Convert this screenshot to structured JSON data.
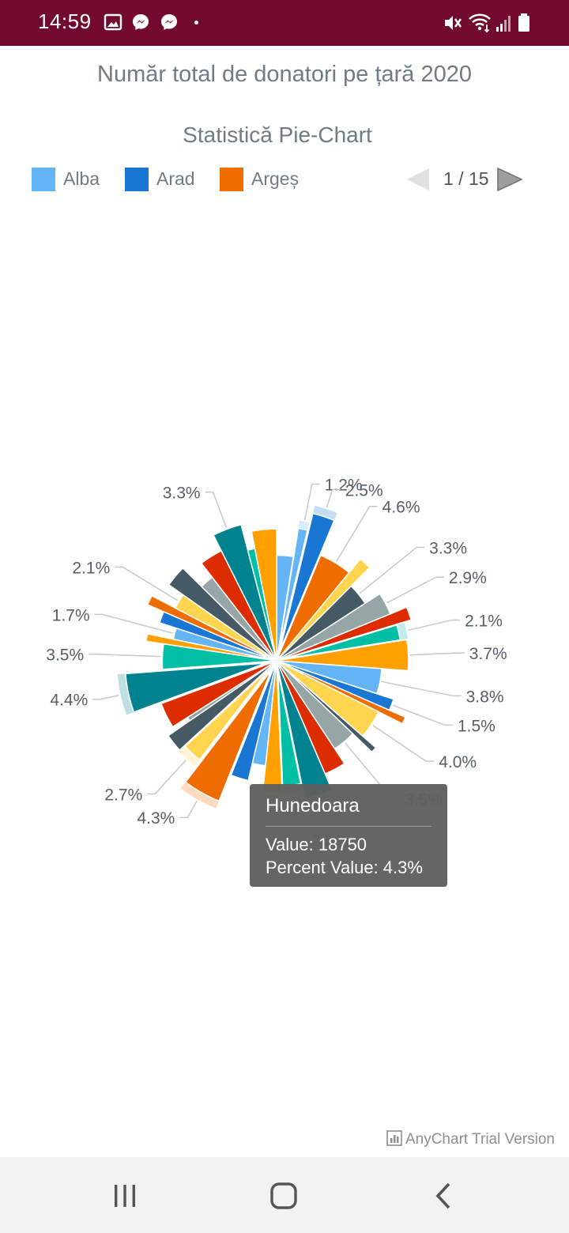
{
  "status_bar": {
    "time": "14:59"
  },
  "chart_data": {
    "type": "pie",
    "title": "Număr total de donatori pe țară 2020",
    "subtitle": "Statistică Pie-Chart",
    "legend": {
      "items": [
        {
          "label": "Alba",
          "color": "#64b5f6"
        },
        {
          "label": "Arad",
          "color": "#1976d2"
        },
        {
          "label": "Argeș",
          "color": "#ef6c00"
        }
      ],
      "page": "1 / 15"
    },
    "slices": [
      {
        "percent": 2.5,
        "color": "#64b5f6",
        "label": ""
      },
      {
        "percent": 1.2,
        "color": "#64b5f6",
        "label": "1.2%",
        "exploded": true
      },
      {
        "percent": 2.5,
        "color": "#1976d2",
        "label": "2.5%",
        "exploded": true
      },
      {
        "percent": 4.6,
        "color": "#ef6c00",
        "label": "4.6%"
      },
      {
        "percent": 1.5,
        "color": "#ffd54f",
        "label": ""
      },
      {
        "percent": 3.3,
        "color": "#455a64",
        "label": "3.3%"
      },
      {
        "percent": 2.9,
        "color": "#96a6a6",
        "label": "2.9%"
      },
      {
        "percent": 1.5,
        "color": "#dd2c00",
        "label": ""
      },
      {
        "percent": 2.1,
        "color": "#00bfa5",
        "label": "2.1%",
        "exploded": true
      },
      {
        "percent": 3.7,
        "color": "#ffa000",
        "label": "3.7%"
      },
      {
        "percent": 3.8,
        "color": "#64b5f6",
        "label": "3.8%"
      },
      {
        "percent": 1.5,
        "color": "#1976d2",
        "label": "1.5%"
      },
      {
        "percent": 0.8,
        "color": "#ef6c00",
        "label": ""
      },
      {
        "percent": 4.0,
        "color": "#ffd54f",
        "label": "4.0%"
      },
      {
        "percent": 0.7,
        "color": "#455a64",
        "label": ""
      },
      {
        "percent": 3.5,
        "color": "#96a6a6",
        "label": "3.5%"
      },
      {
        "percent": 2.8,
        "color": "#dd2c00",
        "label": ""
      },
      {
        "percent": 3.2,
        "color": "#00838f",
        "label": ""
      },
      {
        "percent": 2.5,
        "color": "#00bfa5",
        "label": "2.5%",
        "exploded": true
      },
      {
        "percent": 2.3,
        "color": "#ffa000",
        "label": ""
      },
      {
        "percent": 2.0,
        "color": "#64b5f6",
        "label": ""
      },
      {
        "percent": 2.3,
        "color": "#1976d2",
        "label": ""
      },
      {
        "percent": 4.3,
        "color": "#ef6c00",
        "label": "4.3%",
        "exploded": true
      },
      {
        "percent": 2.7,
        "color": "#ffd54f",
        "label": "2.7%",
        "exploded": true
      },
      {
        "percent": 2.2,
        "color": "#455a64",
        "label": ""
      },
      {
        "percent": 0.6,
        "color": "#96a6a6",
        "label": ""
      },
      {
        "percent": 3.3,
        "color": "#dd2c00",
        "label": ""
      },
      {
        "percent": 4.4,
        "color": "#00838f",
        "label": "4.4%",
        "exploded": true
      },
      {
        "percent": 3.5,
        "color": "#00bfa5",
        "label": "3.5%"
      },
      {
        "percent": 0.9,
        "color": "#ffa000",
        "label": ""
      },
      {
        "percent": 1.7,
        "color": "#64b5f6",
        "label": "1.7%"
      },
      {
        "percent": 1.5,
        "color": "#1976d2",
        "label": ""
      },
      {
        "percent": 1.1,
        "color": "#ef6c00",
        "label": ""
      },
      {
        "percent": 2.1,
        "color": "#ffd54f",
        "label": "2.1%"
      },
      {
        "percent": 2.6,
        "color": "#455a64",
        "label": ""
      },
      {
        "percent": 2.1,
        "color": "#96a6a6",
        "label": ""
      },
      {
        "percent": 3.0,
        "color": "#dd2c00",
        "label": ""
      },
      {
        "percent": 3.3,
        "color": "#00838f",
        "label": "3.3%"
      },
      {
        "percent": 1.0,
        "color": "#00bfa5",
        "label": ""
      },
      {
        "percent": 3.0,
        "color": "#ffa000",
        "label": ""
      }
    ],
    "tooltip": {
      "title": "Hunedoara",
      "value_line": "Value: 18750",
      "percent_line": "Percent Value: 4.3%"
    }
  },
  "credit": "AnyChart Trial Version"
}
